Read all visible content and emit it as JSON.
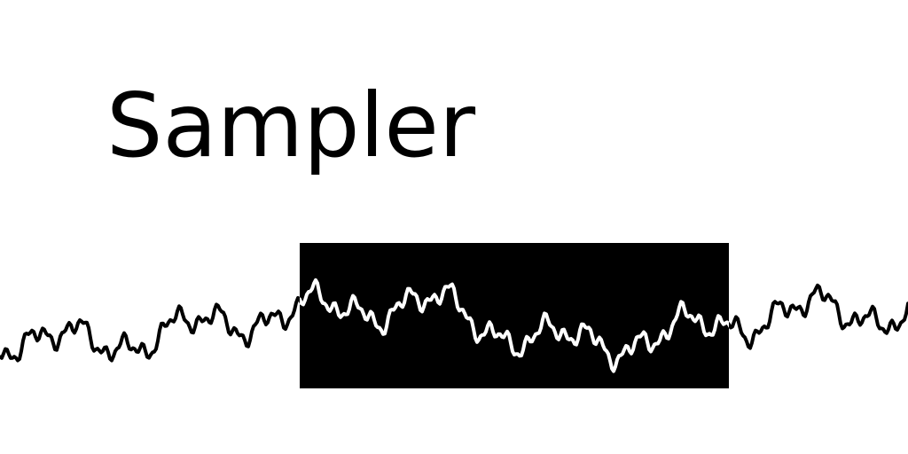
{
  "app": {
    "title": "Sampler"
  },
  "colors": {
    "background": "#ffffff",
    "waveform": "#000000",
    "selection_fill": "#000000",
    "selected_waveform": "#ffffff"
  },
  "waveform": {
    "selection_present": true,
    "selection_fraction": [
      0.33,
      0.8
    ]
  }
}
